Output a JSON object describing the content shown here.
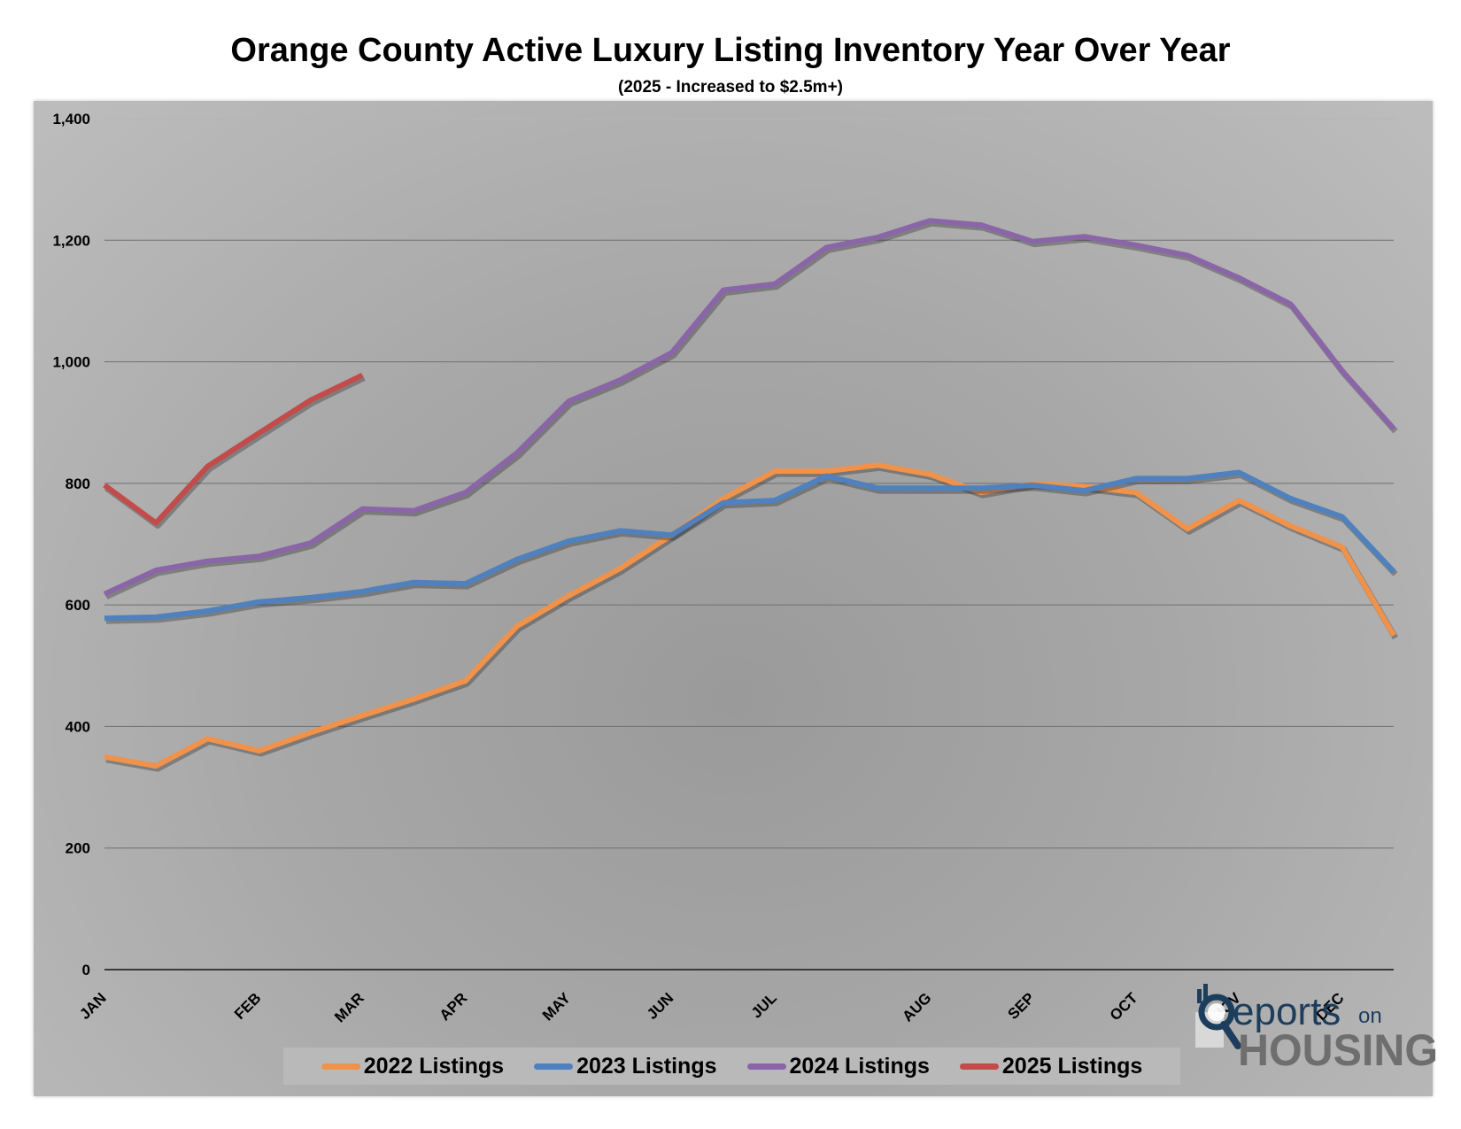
{
  "title": "Orange County Active Luxury Listing Inventory Year Over Year",
  "subtitle": "(2025 - Increased to $2.5m+)",
  "logo": {
    "name_part1": "eports",
    "name_part2": "on",
    "name_part3": "HOUSING"
  },
  "chart_data": {
    "type": "line",
    "title": "Orange County Active Luxury Listing Inventory Year Over Year",
    "subtitle": "(2025 - Increased to $2.5m+)",
    "ylim": [
      0,
      1400
    ],
    "yticks": [
      "0",
      "200",
      "400",
      "600",
      "800",
      "1,000",
      "1,200",
      "1,400"
    ],
    "ytick_values": [
      0,
      200,
      400,
      600,
      800,
      1000,
      1200,
      1400
    ],
    "month_labels": [
      {
        "label": "JAN",
        "index": 0
      },
      {
        "label": "FEB",
        "index": 3
      },
      {
        "label": "MAR",
        "index": 5
      },
      {
        "label": "APR",
        "index": 7
      },
      {
        "label": "MAY",
        "index": 9
      },
      {
        "label": "JUN",
        "index": 11
      },
      {
        "label": "JUL",
        "index": 13
      },
      {
        "label": "AUG",
        "index": 16
      },
      {
        "label": "SEP",
        "index": 18
      },
      {
        "label": "OCT",
        "index": 20
      },
      {
        "label": "NOV",
        "index": 22
      },
      {
        "label": "DEC",
        "index": 24
      }
    ],
    "num_points": 26,
    "grid": true,
    "legend_position": "bottom",
    "series": [
      {
        "name": "2022 Listings",
        "color": "#f0924a",
        "values": [
          350,
          335,
          380,
          360,
          390,
          418,
          445,
          475,
          565,
          615,
          660,
          715,
          775,
          820,
          820,
          830,
          815,
          785,
          800,
          795,
          785,
          725,
          772,
          730,
          695,
          550
        ]
      },
      {
        "name": "2023 Listings",
        "color": "#4e81bd",
        "values": [
          578,
          580,
          590,
          605,
          612,
          622,
          637,
          635,
          675,
          705,
          722,
          715,
          768,
          772,
          812,
          792,
          792,
          792,
          797,
          788,
          808,
          808,
          818,
          775,
          745,
          655
        ]
      },
      {
        "name": "2024 Listings",
        "color": "#8a65a8",
        "values": [
          618,
          657,
          672,
          680,
          702,
          758,
          755,
          785,
          850,
          935,
          970,
          1015,
          1118,
          1128,
          1188,
          1205,
          1232,
          1225,
          1198,
          1206,
          1192,
          1175,
          1138,
          1095,
          985,
          890
        ]
      },
      {
        "name": "2025 Listings",
        "color": "#c34b4a",
        "values": [
          797,
          735,
          828,
          883,
          937,
          978
        ]
      }
    ]
  }
}
